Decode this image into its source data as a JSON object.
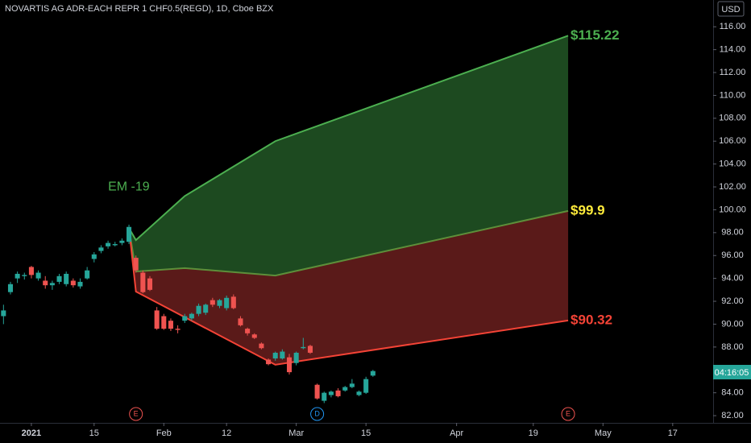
{
  "chart_data": {
    "type": "candlestick",
    "title": "NOVARTIS AG ADR-EACH REPR 1 CHF0.5(REGD), 1D, Cboe BZX",
    "currency": "USD",
    "countdown": "04:16:05",
    "up_color": "#26a69a",
    "down_color": "#ef5350",
    "xlim": [
      -1.5,
      100.8
    ],
    "ylim": [
      81.37,
      118.34
    ],
    "xticks": [
      {
        "value": 3,
        "label": "2021"
      },
      {
        "value": 12,
        "label": "15"
      },
      {
        "value": 22,
        "label": "Feb"
      },
      {
        "value": 31,
        "label": "12"
      },
      {
        "value": 41,
        "label": "Mar"
      },
      {
        "value": 51,
        "label": "15"
      },
      {
        "value": 64,
        "label": "Apr"
      },
      {
        "value": 75,
        "label": "19"
      },
      {
        "value": 85,
        "label": "May"
      },
      {
        "value": 95,
        "label": "17"
      }
    ],
    "yticks": [
      {
        "value": 82,
        "label": "82.00"
      },
      {
        "value": 84,
        "label": "84.00"
      },
      {
        "value": 86,
        "label": "86.00"
      },
      {
        "value": 88,
        "label": "88.00"
      },
      {
        "value": 90,
        "label": "90.00"
      },
      {
        "value": 92,
        "label": "92.00"
      },
      {
        "value": 94,
        "label": "94.00"
      },
      {
        "value": 96,
        "label": "96.00"
      },
      {
        "value": 98,
        "label": "98.00"
      },
      {
        "value": 100,
        "label": "100.00"
      },
      {
        "value": 102,
        "label": "102.00"
      },
      {
        "value": 104,
        "label": "104.00"
      },
      {
        "value": 106,
        "label": "106.00"
      },
      {
        "value": 108,
        "label": "108.00"
      },
      {
        "value": 110,
        "label": "110.00"
      },
      {
        "value": 112,
        "label": "112.00"
      },
      {
        "value": 114,
        "label": "114.00"
      },
      {
        "value": 116,
        "label": "116.00"
      }
    ],
    "x": [
      -1,
      0,
      1,
      2,
      3,
      4,
      5,
      6,
      7,
      8,
      9,
      10,
      11,
      12,
      13,
      14,
      15,
      16,
      17,
      18,
      19,
      20,
      21,
      22,
      23,
      24,
      25,
      26,
      27,
      28,
      29,
      30,
      31,
      32,
      33,
      34,
      35,
      36,
      37,
      38,
      39,
      40,
      41,
      42,
      43,
      44,
      45,
      46,
      47,
      48,
      49,
      50,
      51,
      52
    ],
    "open": [
      90.7,
      92.8,
      94.0,
      94.2,
      95.0,
      94.0,
      93.8,
      93.4,
      93.7,
      93.5,
      93.8,
      93.3,
      94.0,
      95.7,
      96.4,
      96.8,
      96.9,
      97.1,
      97.2,
      95.8,
      94.5,
      94.0,
      91.2,
      90.7,
      90.3,
      89.6,
      90.3,
      90.5,
      90.9,
      91.0,
      92.1,
      91.6,
      91.4,
      92.4,
      90.5,
      89.6,
      89.1,
      88.3,
      86.9,
      87.0,
      87.0,
      87.1,
      86.6,
      87.9,
      88.1,
      84.7,
      83.3,
      83.8,
      84.2,
      84.2,
      84.5,
      83.8,
      84.0,
      85.5
    ],
    "high": [
      91.7,
      93.7,
      94.6,
      94.5,
      95.1,
      94.7,
      94.2,
      93.8,
      94.4,
      94.6,
      94.0,
      94.0,
      95.0,
      96.3,
      96.9,
      97.3,
      97.2,
      97.5,
      98.7,
      96.0,
      94.7,
      94.2,
      91.5,
      90.9,
      90.5,
      89.9,
      90.9,
      91.0,
      91.8,
      91.8,
      92.3,
      92.2,
      92.5,
      92.6,
      90.7,
      89.7,
      89.2,
      88.4,
      87.0,
      87.6,
      87.8,
      87.4,
      87.6,
      88.8,
      88.2,
      84.8,
      84.1,
      84.2,
      84.4,
      84.6,
      85.2,
      84.2,
      85.4,
      86.0
    ],
    "low": [
      90.0,
      92.6,
      93.6,
      93.9,
      94.0,
      93.8,
      93.1,
      93.0,
      93.5,
      93.3,
      93.2,
      93.1,
      93.9,
      95.4,
      96.2,
      96.6,
      96.8,
      96.9,
      97.0,
      94.5,
      92.7,
      92.9,
      89.5,
      89.5,
      89.4,
      89.2,
      90.1,
      90.3,
      90.7,
      90.8,
      91.5,
      91.4,
      91.2,
      91.3,
      89.8,
      89.0,
      88.7,
      87.8,
      86.4,
      86.8,
      86.9,
      85.6,
      86.4,
      87.8,
      87.4,
      83.4,
      83.1,
      83.6,
      83.6,
      84.1,
      84.4,
      83.7,
      83.9,
      85.4
    ],
    "close": [
      91.2,
      93.5,
      94.4,
      94.3,
      94.3,
      94.5,
      93.4,
      93.6,
      94.2,
      94.4,
      93.4,
      93.7,
      94.7,
      96.1,
      96.7,
      97.1,
      97.0,
      97.3,
      98.5,
      94.7,
      92.8,
      93.0,
      89.6,
      89.6,
      89.6,
      89.5,
      90.7,
      90.9,
      91.6,
      91.7,
      91.7,
      92.1,
      92.3,
      91.4,
      89.9,
      89.2,
      88.8,
      87.9,
      86.5,
      87.5,
      87.6,
      85.8,
      87.5,
      88.0,
      87.5,
      83.5,
      84.0,
      84.1,
      83.7,
      84.5,
      84.8,
      84.1,
      85.2,
      85.9
    ],
    "overlays": [
      {
        "color": "#4caf50",
        "x": [
          17,
          18,
          25,
          38,
          80
        ],
        "values": [
          98.4,
          97.35,
          101.2,
          106.0,
          115.22
        ],
        "end_label": "$115.22"
      },
      {
        "color": "#ffeb3b",
        "line_color": "#5d8f3a",
        "x": [
          17,
          18,
          25,
          38,
          80
        ],
        "values": [
          98.4,
          94.6,
          94.9,
          94.25,
          99.9
        ],
        "end_label": "$99.9"
      },
      {
        "color": "#f44336",
        "x": [
          17,
          18,
          38,
          80
        ],
        "values": [
          98.4,
          92.85,
          86.45,
          90.32
        ],
        "end_label": "$90.32"
      }
    ],
    "band_fills": [
      "#1d4a20",
      "#5a1a19"
    ],
    "annotation": {
      "text": "EM -19",
      "color": "#4caf50",
      "x": 14,
      "y": 102
    },
    "events": [
      {
        "label": "E",
        "x": 18,
        "color": "#ef5350"
      },
      {
        "label": "D",
        "x": 44,
        "color": "#2196f3"
      },
      {
        "label": "E",
        "x": 80,
        "color": "#ef5350"
      }
    ]
  }
}
